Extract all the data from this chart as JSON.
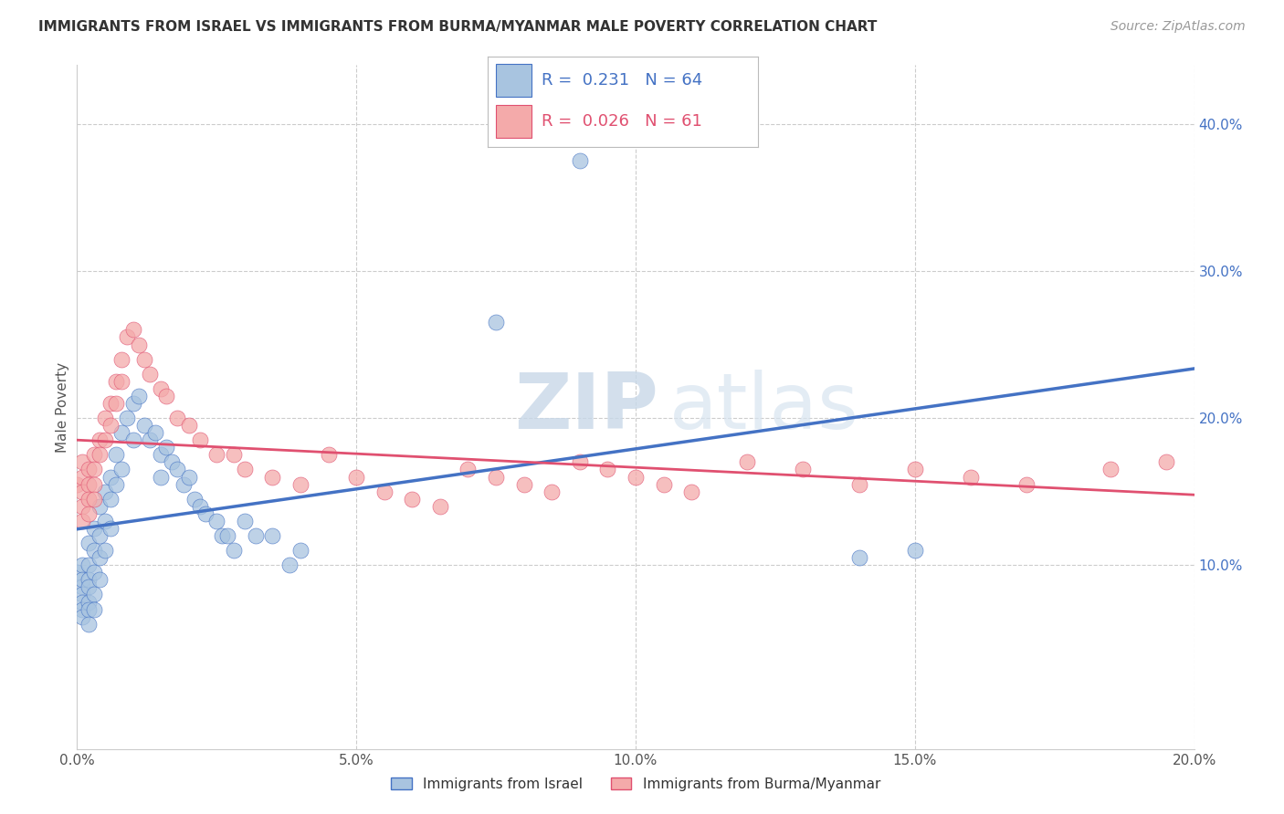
{
  "title": "IMMIGRANTS FROM ISRAEL VS IMMIGRANTS FROM BURMA/MYANMAR MALE POVERTY CORRELATION CHART",
  "source": "Source: ZipAtlas.com",
  "ylabel": "Male Poverty",
  "xlim": [
    0.0,
    0.2
  ],
  "ylim": [
    -0.025,
    0.44
  ],
  "xtick_labels": [
    "0.0%",
    "5.0%",
    "10.0%",
    "15.0%",
    "20.0%"
  ],
  "xtick_vals": [
    0.0,
    0.05,
    0.1,
    0.15,
    0.2
  ],
  "ytick_labels": [
    "10.0%",
    "20.0%",
    "30.0%",
    "40.0%"
  ],
  "ytick_vals": [
    0.1,
    0.2,
    0.3,
    0.4
  ],
  "legend1_label": "Immigrants from Israel",
  "legend2_label": "Immigrants from Burma/Myanmar",
  "R1": 0.231,
  "N1": 64,
  "R2": 0.026,
  "N2": 61,
  "color_israel": "#A8C4E0",
  "color_burma": "#F4AAAA",
  "line_color_israel": "#4472C4",
  "line_color_burma": "#E05070",
  "watermark_zip": "ZIP",
  "watermark_atlas": "atlas",
  "background_color": "#FFFFFF",
  "grid_color": "#CCCCCC",
  "israel_x": [
    0.0,
    0.001,
    0.001,
    0.001,
    0.001,
    0.001,
    0.001,
    0.001,
    0.002,
    0.002,
    0.002,
    0.002,
    0.002,
    0.002,
    0.002,
    0.003,
    0.003,
    0.003,
    0.003,
    0.003,
    0.004,
    0.004,
    0.004,
    0.004,
    0.005,
    0.005,
    0.005,
    0.006,
    0.006,
    0.006,
    0.007,
    0.007,
    0.008,
    0.008,
    0.009,
    0.01,
    0.01,
    0.011,
    0.012,
    0.013,
    0.014,
    0.015,
    0.015,
    0.016,
    0.017,
    0.018,
    0.019,
    0.02,
    0.021,
    0.022,
    0.023,
    0.025,
    0.026,
    0.027,
    0.028,
    0.03,
    0.032,
    0.035,
    0.038,
    0.04,
    0.075,
    0.09,
    0.14,
    0.15
  ],
  "israel_y": [
    0.095,
    0.085,
    0.1,
    0.09,
    0.08,
    0.075,
    0.07,
    0.065,
    0.115,
    0.1,
    0.09,
    0.085,
    0.075,
    0.07,
    0.06,
    0.125,
    0.11,
    0.095,
    0.08,
    0.07,
    0.14,
    0.12,
    0.105,
    0.09,
    0.15,
    0.13,
    0.11,
    0.16,
    0.145,
    0.125,
    0.175,
    0.155,
    0.19,
    0.165,
    0.2,
    0.21,
    0.185,
    0.215,
    0.195,
    0.185,
    0.19,
    0.175,
    0.16,
    0.18,
    0.17,
    0.165,
    0.155,
    0.16,
    0.145,
    0.14,
    0.135,
    0.13,
    0.12,
    0.12,
    0.11,
    0.13,
    0.12,
    0.12,
    0.1,
    0.11,
    0.265,
    0.375,
    0.105,
    0.11
  ],
  "burma_x": [
    0.0,
    0.001,
    0.001,
    0.001,
    0.001,
    0.001,
    0.002,
    0.002,
    0.002,
    0.002,
    0.003,
    0.003,
    0.003,
    0.003,
    0.004,
    0.004,
    0.005,
    0.005,
    0.006,
    0.006,
    0.007,
    0.007,
    0.008,
    0.008,
    0.009,
    0.01,
    0.011,
    0.012,
    0.013,
    0.015,
    0.016,
    0.018,
    0.02,
    0.022,
    0.025,
    0.028,
    0.03,
    0.035,
    0.04,
    0.045,
    0.05,
    0.055,
    0.06,
    0.065,
    0.07,
    0.075,
    0.08,
    0.085,
    0.09,
    0.095,
    0.1,
    0.105,
    0.11,
    0.12,
    0.13,
    0.14,
    0.15,
    0.16,
    0.17,
    0.185,
    0.195
  ],
  "burma_y": [
    0.155,
    0.16,
    0.15,
    0.14,
    0.13,
    0.17,
    0.165,
    0.155,
    0.145,
    0.135,
    0.175,
    0.165,
    0.155,
    0.145,
    0.185,
    0.175,
    0.2,
    0.185,
    0.21,
    0.195,
    0.225,
    0.21,
    0.24,
    0.225,
    0.255,
    0.26,
    0.25,
    0.24,
    0.23,
    0.22,
    0.215,
    0.2,
    0.195,
    0.185,
    0.175,
    0.175,
    0.165,
    0.16,
    0.155,
    0.175,
    0.16,
    0.15,
    0.145,
    0.14,
    0.165,
    0.16,
    0.155,
    0.15,
    0.17,
    0.165,
    0.16,
    0.155,
    0.15,
    0.17,
    0.165,
    0.155,
    0.165,
    0.16,
    0.155,
    0.165,
    0.17
  ]
}
